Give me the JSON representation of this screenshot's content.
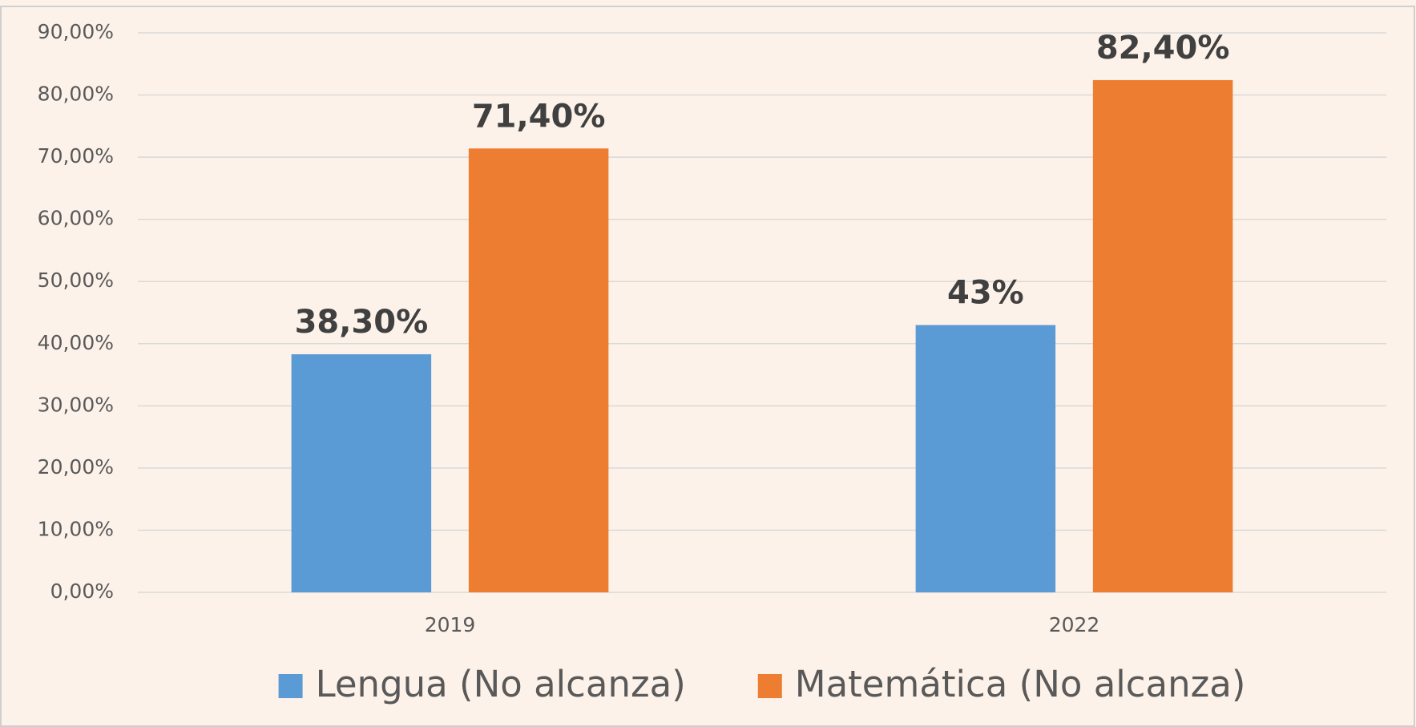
{
  "chart_data": {
    "type": "bar",
    "categories": [
      "2019",
      "2022"
    ],
    "series": [
      {
        "name": "Lengua (No alcanza)",
        "color": "#5b9bd5",
        "values": [
          38.3,
          43
        ],
        "value_labels": [
          "38,30%",
          "43%"
        ]
      },
      {
        "name": "Matemática (No alcanza)",
        "color": "#ed7d31",
        "values": [
          71.4,
          82.4
        ],
        "value_labels": [
          "71,40%",
          "82,40%"
        ]
      }
    ],
    "ylim": [
      0,
      90
    ],
    "yticks": [
      {
        "value": 0,
        "label": "0,00%"
      },
      {
        "value": 10,
        "label": "10,00%"
      },
      {
        "value": 20,
        "label": "20,00%"
      },
      {
        "value": 30,
        "label": "30,00%"
      },
      {
        "value": 40,
        "label": "40,00%"
      },
      {
        "value": 50,
        "label": "50,00%"
      },
      {
        "value": 60,
        "label": "60,00%"
      },
      {
        "value": 70,
        "label": "70,00%"
      },
      {
        "value": 80,
        "label": "80,00%"
      },
      {
        "value": 90,
        "label": "90,00%"
      }
    ],
    "grid": true,
    "legend": "bottom"
  }
}
